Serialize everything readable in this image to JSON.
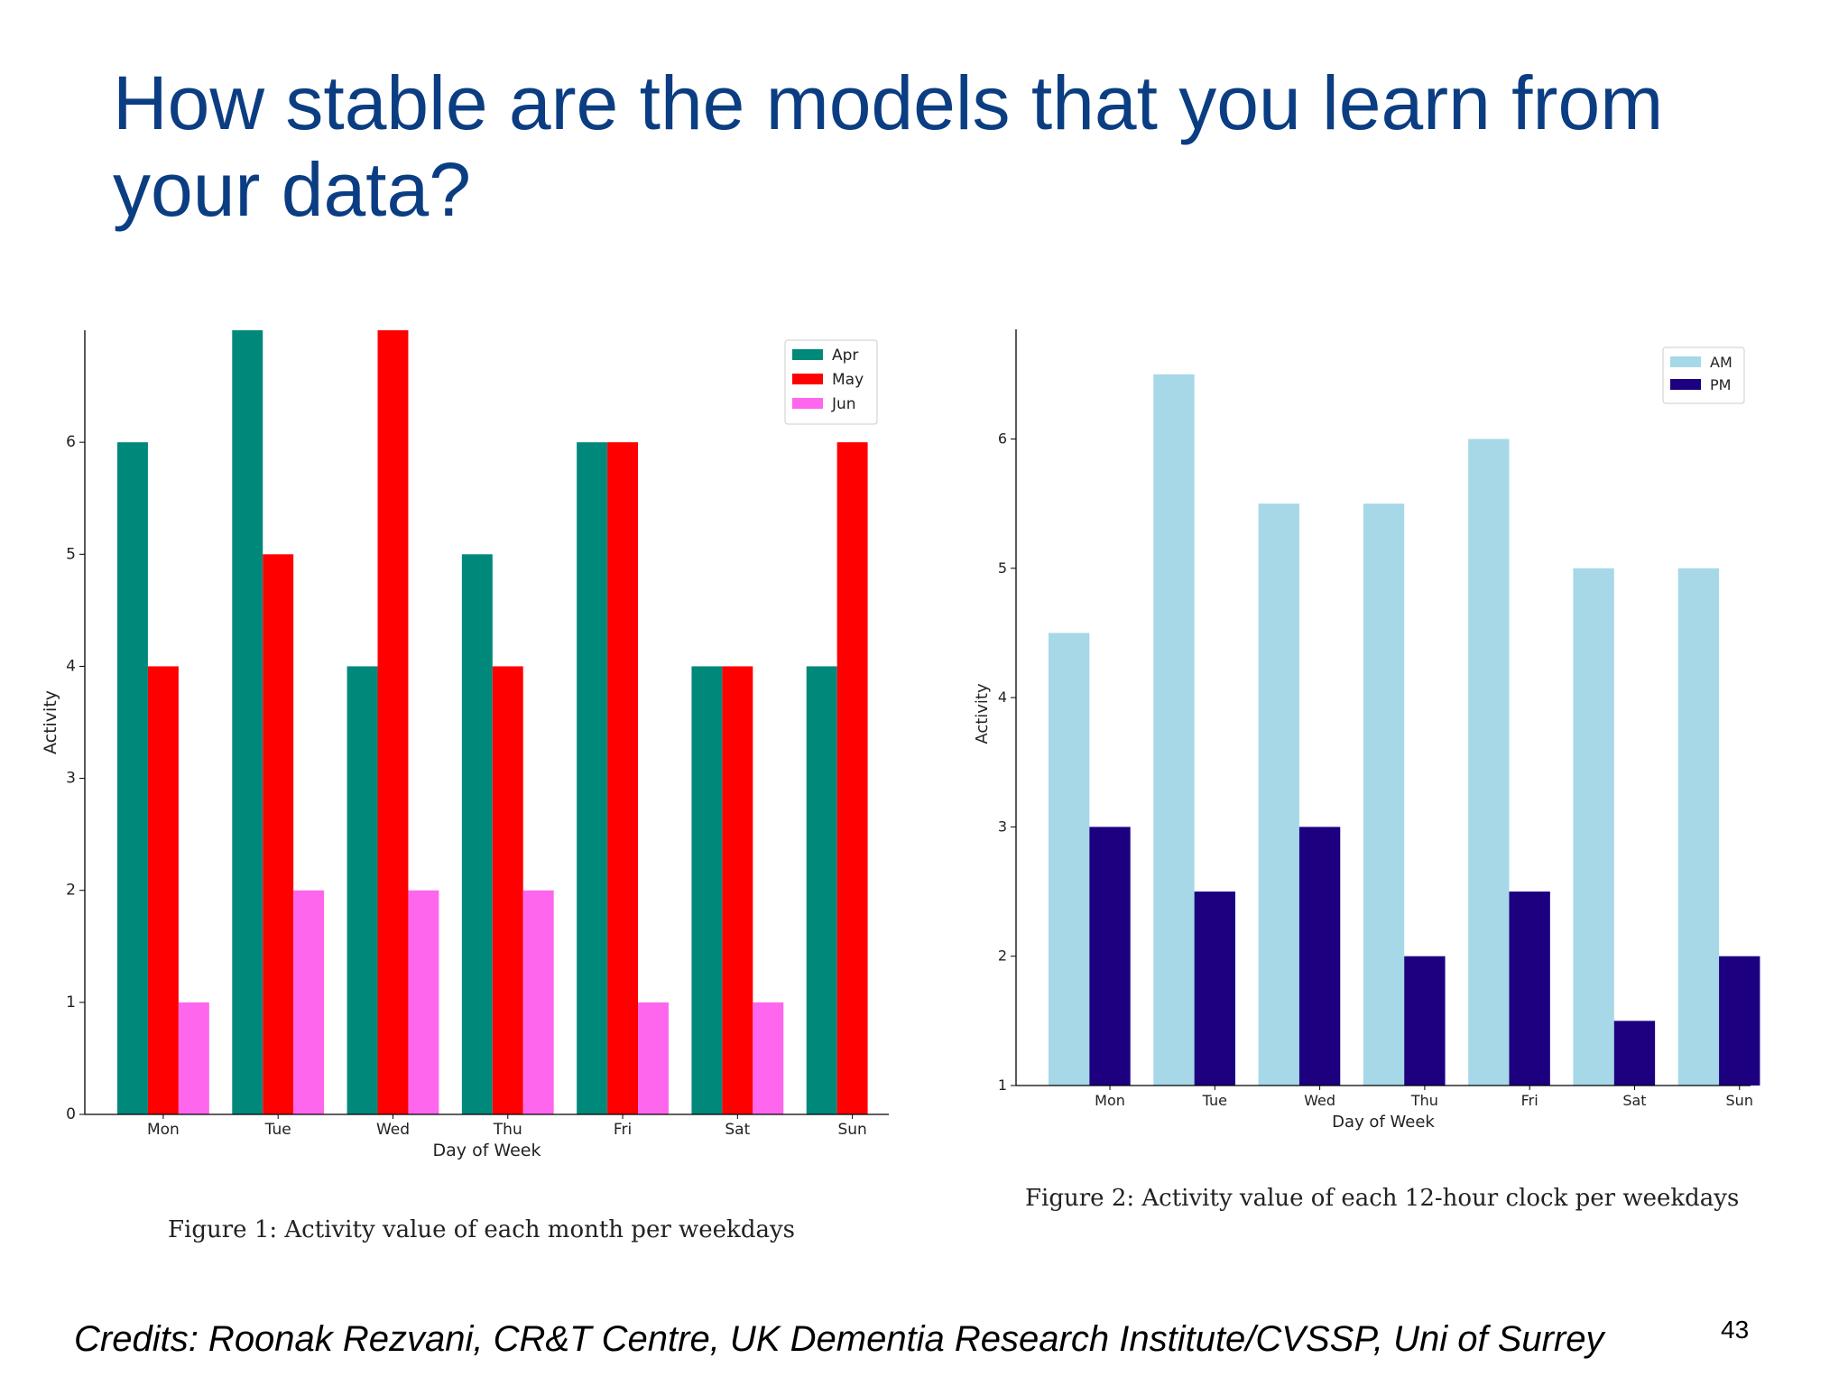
{
  "slide": {
    "title": "How stable are the models that you learn from your data?",
    "credits": "Credits: Roonak Rezvani, CR&T Centre, UK Dementia Research Institute/CVSSP, Uni of Surrey",
    "page_number": "43"
  },
  "chart_data": [
    {
      "type": "bar",
      "caption": "Figure 1:  Activity value of each month per weekdays",
      "xlabel": "Day of Week",
      "ylabel": "Activity",
      "categories": [
        "Mon",
        "Tue",
        "Wed",
        "Thu",
        "Fri",
        "Sat",
        "Sun"
      ],
      "ylim": [
        0,
        7
      ],
      "yticks": [
        0,
        1,
        2,
        3,
        4,
        5,
        6
      ],
      "legend_position": "top-right",
      "grid": false,
      "series": [
        {
          "name": "Apr",
          "color": "#00897b",
          "values": [
            6,
            7,
            4,
            5,
            6,
            4,
            4
          ]
        },
        {
          "name": "May",
          "color": "#ff0000",
          "values": [
            4,
            5,
            7,
            4,
            6,
            4,
            6
          ]
        },
        {
          "name": "Jun",
          "color": "#ff66ee",
          "values": [
            1,
            2,
            2,
            2,
            1,
            1,
            0
          ]
        }
      ]
    },
    {
      "type": "bar",
      "caption": "Figure 2:  Activity value of each 12-hour clock per weekdays",
      "xlabel": "Day of Week",
      "ylabel": "Activity",
      "categories": [
        "Mon",
        "Tue",
        "Wed",
        "Thu",
        "Fri",
        "Sat",
        "Sun"
      ],
      "ylim": [
        1,
        6.75
      ],
      "yticks": [
        1,
        2,
        3,
        4,
        5,
        6
      ],
      "legend_position": "top-right",
      "grid": false,
      "series": [
        {
          "name": "AM",
          "color": "#a6d8e8",
          "values": [
            4.5,
            6.5,
            5.5,
            5.5,
            6,
            5,
            5
          ]
        },
        {
          "name": "PM",
          "color": "#1c0080",
          "values": [
            3,
            2.5,
            3,
            2,
            2.5,
            1.5,
            2
          ]
        }
      ]
    }
  ]
}
